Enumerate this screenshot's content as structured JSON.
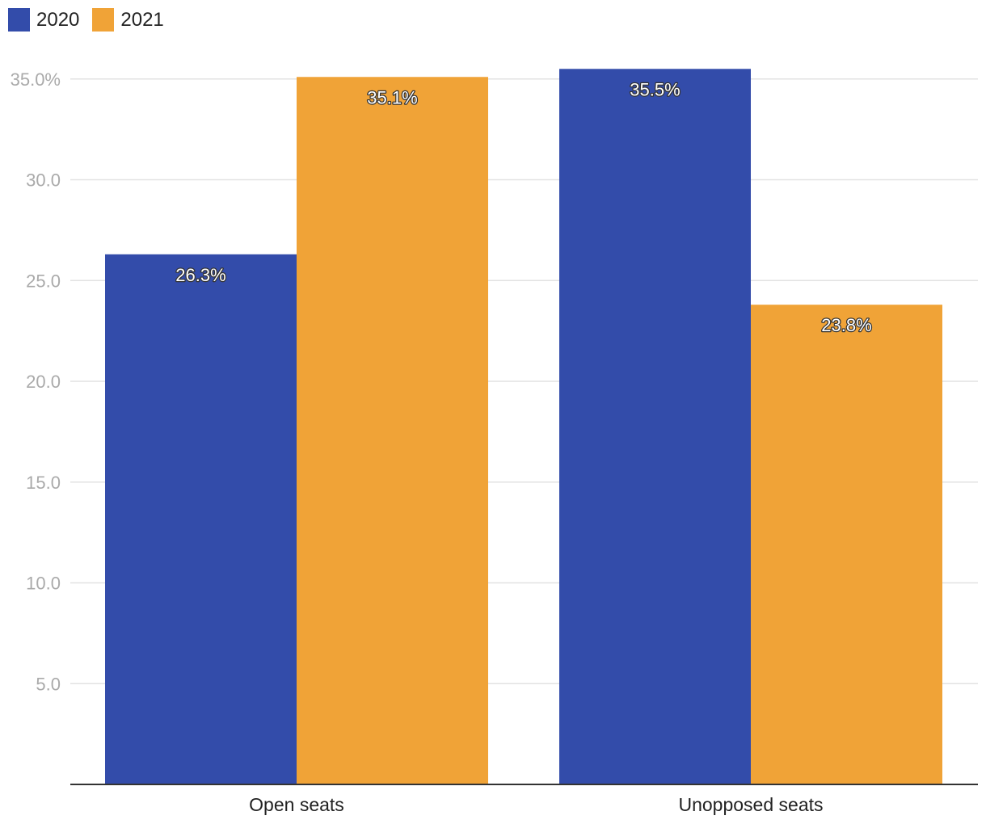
{
  "colors": {
    "series_2020": "#334CAA",
    "series_2021": "#F0A337",
    "grid": "#E2E2E2",
    "axis": "#333333",
    "tick_label": "#AAAAAA",
    "category_label": "#222222",
    "data_label_fill": "#FFFFFF",
    "data_label_dark": "#333333"
  },
  "legend": {
    "items": [
      {
        "label": "2020",
        "color": "#334CAA"
      },
      {
        "label": "2021",
        "color": "#F0A337"
      }
    ],
    "placement": "top-left"
  },
  "chart_data": {
    "type": "bar",
    "title": "",
    "xlabel": "",
    "ylabel": "",
    "categories": [
      "Open seats",
      "Unopposed seats"
    ],
    "series": [
      {
        "name": "2020",
        "values": [
          26.3,
          35.5
        ],
        "labels": [
          "26.3%",
          "35.5%"
        ]
      },
      {
        "name": "2021",
        "values": [
          35.1,
          23.8
        ],
        "labels": [
          "35.1%",
          "23.8%"
        ]
      }
    ],
    "ylim": [
      0,
      35
    ],
    "yticks": [
      5,
      10,
      15,
      20,
      25,
      30,
      35
    ],
    "ytick_labels": [
      "5.0",
      "10.0",
      "15.0",
      "20.0",
      "25.0",
      "30.0",
      "35.0%"
    ],
    "grid": true
  }
}
